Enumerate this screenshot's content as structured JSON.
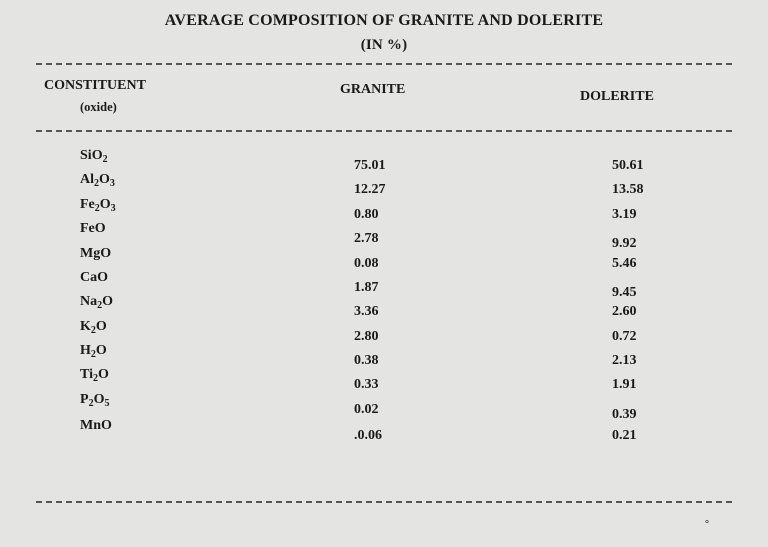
{
  "title": {
    "line1": "AVERAGE COMPOSITION OF GRANITE AND DOLERITE",
    "line2": "(IN %)"
  },
  "columns": {
    "constituent": "CONSTITUENT",
    "constituent_sub": "(oxide)",
    "granite": "GRANITE",
    "dolerite": "DOLERITE"
  },
  "rows": [
    {
      "formula": [
        [
          "Si",
          ""
        ],
        [
          "O",
          "2"
        ]
      ],
      "granite": "75.01",
      "dolerite": "50.61"
    },
    {
      "formula": [
        [
          "Al",
          "2"
        ],
        [
          "O",
          "3"
        ]
      ],
      "granite": "12.27",
      "dolerite": "13.58"
    },
    {
      "formula": [
        [
          "Fe",
          "2"
        ],
        [
          "O",
          "3"
        ]
      ],
      "granite": "0.80",
      "dolerite": "3.19"
    },
    {
      "formula": [
        [
          "FeO",
          ""
        ]
      ],
      "granite": "2.78",
      "dolerite": "9.92"
    },
    {
      "formula": [
        [
          "MgO",
          ""
        ]
      ],
      "granite": "0.08",
      "dolerite": "5.46"
    },
    {
      "formula": [
        [
          "CaO",
          ""
        ]
      ],
      "granite": "1.87",
      "dolerite": "9.45"
    },
    {
      "formula": [
        [
          "Na",
          "2"
        ],
        [
          "O",
          ""
        ]
      ],
      "granite": "3.36",
      "dolerite": "2.60"
    },
    {
      "formula": [
        [
          "K",
          "2"
        ],
        [
          "O",
          ""
        ]
      ],
      "granite": "2.80",
      "dolerite": "0.72"
    },
    {
      "formula": [
        [
          "H",
          "2"
        ],
        [
          "O",
          ""
        ]
      ],
      "granite": "0.38",
      "dolerite": "2.13"
    },
    {
      "formula": [
        [
          "Ti",
          "2"
        ],
        [
          "O",
          ""
        ]
      ],
      "granite": "0.33",
      "dolerite": "1.91"
    },
    {
      "formula": [
        [
          "P",
          "2"
        ],
        [
          "O",
          "5"
        ]
      ],
      "granite": "0.02",
      "dolerite": "0.39"
    },
    {
      "formula": [
        [
          "MnO",
          ""
        ]
      ],
      "granite": ".0.06",
      "dolerite": "0.21"
    }
  ],
  "footer_mark": "°"
}
